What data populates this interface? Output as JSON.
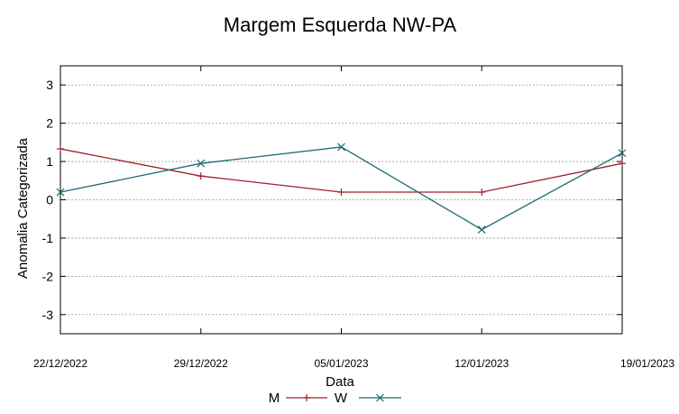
{
  "chart_data": {
    "type": "line",
    "title": "Margem Esquerda NW-PA",
    "xlabel": "Data",
    "ylabel": "Anomalia Categorizada",
    "categories": [
      "22/12/2022",
      "29/12/2022",
      "05/01/2023",
      "12/01/2023",
      "19/01/2023"
    ],
    "yticks": [
      "3",
      "2",
      "1",
      "0",
      "-1",
      "-2",
      "-3"
    ],
    "ylim": [
      -3.5,
      3.5
    ],
    "grid": true,
    "series": [
      {
        "name": "M",
        "color": "#a0202a",
        "marker": "plus",
        "values": [
          1.33,
          0.62,
          0.2,
          0.2,
          0.95
        ]
      },
      {
        "name": "W",
        "color": "#1a6b72",
        "marker": "cross",
        "values": [
          0.2,
          0.95,
          1.38,
          -0.78,
          1.22
        ]
      }
    ]
  }
}
